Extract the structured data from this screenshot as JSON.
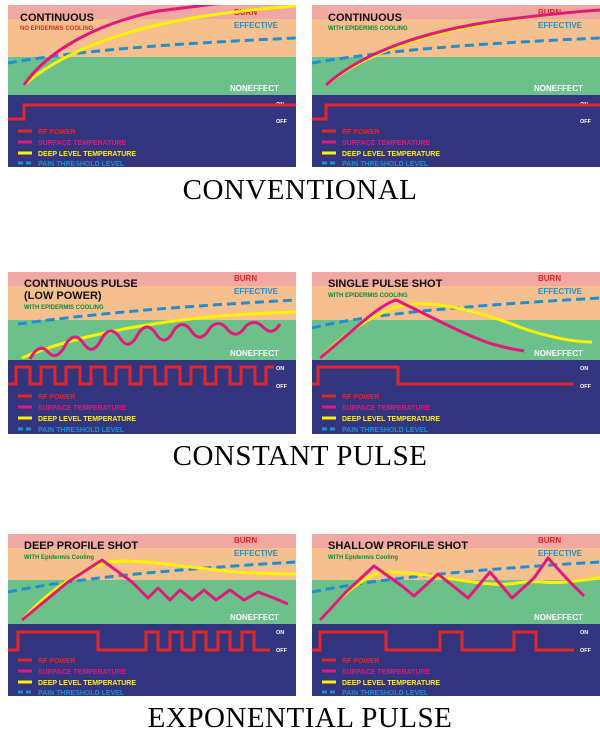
{
  "colors": {
    "burn_band": "#f0a9a2",
    "effective_band": "#f6c08e",
    "noneffect_band": "#6cc08a",
    "power_area": "#34357f",
    "rf_power": "#e2262a",
    "surface_temp": "#e0197d",
    "deep_temp": "#fff200",
    "pain_threshold": "#1f8fd0",
    "burn_label": "#e2262a",
    "effective_label": "#1f8fd0",
    "subtitle_red": "#e2262a",
    "subtitle_green": "#0b8a3a"
  },
  "band_labels": {
    "burn": "BURN",
    "effective": "EFFECTIVE",
    "noneffect": "NONEFFECT",
    "on": "ON",
    "off": "OFF"
  },
  "legend": {
    "rf_power": "RF POWER",
    "surface_temperature": "SURFACE TEMPERATURE",
    "deep_level_temperature": "DEEP LEVEL TEMPERATURE",
    "pain_threshold_level": "PAIN THRESHOLD LEVEL"
  },
  "sections": [
    {
      "title": "CONVENTIONAL"
    },
    {
      "title": "CONSTANT PULSE"
    },
    {
      "title": "EXPONENTIAL  PULSE"
    }
  ],
  "panels": [
    {
      "title": "CONTINUOUS",
      "title2": "",
      "subtitle": "NO EPIDERMIS COOLING",
      "subtitle_color": "red"
    },
    {
      "title": "CONTINUOUS",
      "title2": "",
      "subtitle": "WITH EPIDERMIS COOLING",
      "subtitle_color": "green"
    },
    {
      "title": "CONTINUOUS PULSE",
      "title2": "(LOW POWER)",
      "subtitle": "WITH EPIDERMIS COOLING",
      "subtitle_color": "green"
    },
    {
      "title": "SINGLE PULSE SHOT",
      "title2": "",
      "subtitle": "WITH EPIDERMIS COOLING",
      "subtitle_color": "green"
    },
    {
      "title": "DEEP PROFILE SHOT",
      "title2": "",
      "subtitle": "WITH Epidermis Cooling",
      "subtitle_color": "green"
    },
    {
      "title": "SHALLOW PROFILE SHOT",
      "title2": "",
      "subtitle": "WITH Epidermis Cooling",
      "subtitle_color": "green"
    }
  ]
}
